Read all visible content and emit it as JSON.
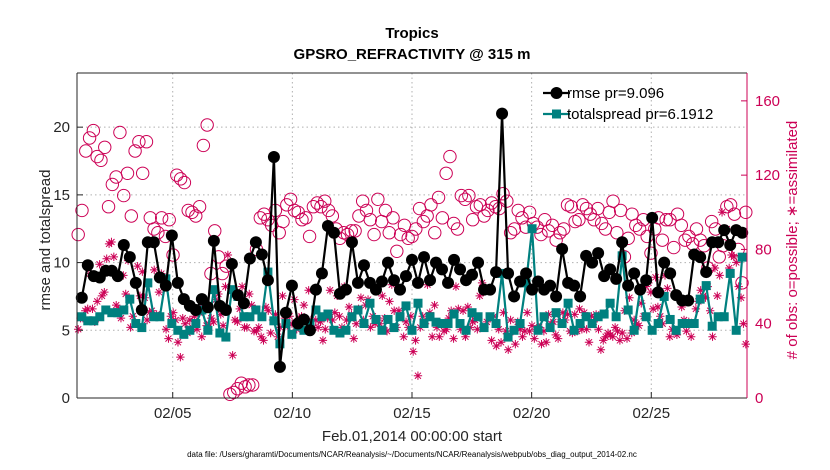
{
  "chart_data": {
    "type": "line",
    "title": "Tropics",
    "subtitle": "GPSRO_REFRACTIVITY @ 315 m",
    "xlabel": "Feb.01,2014 00:00:00 start",
    "ylabel": "rmse and totalspread",
    "ylabel_right": "# of obs: o=possible; ∗=assimilated",
    "footnote": "data file: /Users/gharamti/Documents/NCAR/Reanalysis/~/Documents/NCAR/Reanalysis/webpub/obs_diag_output_2014-02.nc",
    "x_range": [
      1.0,
      29.0
    ],
    "ylim": [
      0,
      24
    ],
    "ylim_right": [
      0,
      175
    ],
    "x_ticks": [
      5,
      10,
      15,
      20,
      25
    ],
    "x_tick_labels": [
      "02/05",
      "02/10",
      "02/15",
      "02/20",
      "02/25"
    ],
    "y_ticks": [
      0,
      5,
      10,
      15,
      20
    ],
    "y_tick_labels": [
      "0",
      "5",
      "10",
      "15",
      "20"
    ],
    "y_right_ticks": [
      0,
      40,
      80,
      120,
      160
    ],
    "y_right_tick_labels": [
      "0",
      "40",
      "80",
      "120",
      "160"
    ],
    "legend_position": "top-right",
    "colors": {
      "rmse": "#000000",
      "spread": "#00807f",
      "obs": "#cc0055"
    },
    "series": [
      {
        "name": "rmse",
        "legend": "rmse pr=9.096",
        "marker": "filled-circle",
        "values": [
          7.4,
          9.8,
          9.0,
          8.9,
          9.4,
          9.4,
          9.0,
          11.3,
          10.4,
          8.5,
          6.5,
          11.5,
          11.5,
          8.9,
          8.3,
          12.0,
          8.5,
          7.3,
          6.8,
          6.5,
          7.3,
          6.7,
          11.6,
          6.8,
          6.5,
          9.9,
          7.6,
          7.0,
          10.3,
          11.5,
          10.6,
          8.7,
          17.8,
          2.3,
          6.3,
          8.3,
          5.5,
          5.8,
          5.0,
          8.0,
          9.2,
          12.7,
          12.2,
          7.7,
          8.0,
          11.5,
          8.5,
          9.8,
          8.5,
          8.0,
          8.6,
          10.0,
          8.7,
          8.0,
          9.0,
          10.2,
          8.5,
          10.4,
          8.7,
          10.0,
          9.5,
          8.5,
          10.2,
          9.5,
          8.7,
          9.1,
          10.0,
          8.0,
          8.0,
          9.3,
          21.0,
          9.2,
          7.5,
          8.6,
          9.2,
          8.0,
          8.6,
          8.0,
          8.3,
          7.5,
          11.0,
          8.5,
          8.3,
          7.5,
          10.5,
          10.0,
          10.7,
          9.0,
          9.5,
          8.8,
          11.5,
          8.3,
          9.2,
          8.0,
          8.7,
          13.3,
          7.8,
          10.0,
          9.2,
          7.6,
          7.2,
          7.2,
          10.6,
          10.4,
          9.3,
          11.5,
          11.5,
          12.4,
          11.3,
          12.4,
          12.2
        ]
      },
      {
        "name": "totalspread",
        "legend": "totalspread pr=6.1912",
        "marker": "filled-square",
        "values": [
          6.0,
          5.7,
          5.7,
          6.0,
          6.5,
          6.3,
          6.3,
          6.5,
          7.3,
          5.5,
          5.2,
          8.5,
          6.0,
          6.0,
          8.8,
          5.5,
          5.0,
          4.7,
          5.0,
          5.5,
          6.5,
          5.0,
          8.0,
          4.8,
          4.5,
          8.0,
          7.5,
          6.0,
          6.0,
          6.5,
          6.0,
          9.3,
          5.7,
          4.0,
          5.5,
          4.7,
          5.3,
          5.0,
          5.5,
          6.5,
          6.0,
          6.2,
          5.0,
          4.8,
          5.0,
          6.0,
          6.5,
          5.5,
          7.0,
          5.8,
          5.0,
          5.8,
          5.2,
          6.0,
          6.8,
          5.0,
          7.0,
          5.5,
          6.0,
          5.6,
          5.5,
          5.5,
          6.2,
          5.5,
          5.0,
          6.3,
          6.0,
          5.2,
          6.0,
          5.5,
          9.2,
          4.5,
          5.0,
          5.5,
          8.5,
          12.5,
          5.0,
          6.0,
          5.2,
          6.3,
          5.5,
          7.0,
          5.0,
          5.5,
          6.0,
          5.5,
          6.0,
          6.2,
          7.0,
          6.0,
          10.5,
          6.5,
          5.0,
          8.0,
          6.0,
          5.0,
          5.5,
          7.5,
          5.8,
          5.0,
          5.5,
          5.5,
          5.5,
          7.3,
          8.3,
          5.3,
          6.0,
          6.0,
          9.2,
          5.0,
          10.4
        ]
      },
      {
        "name": "possible obs",
        "axis": "right",
        "marker": "open-circle",
        "values": [
          88,
          101,
          133,
          140,
          144,
          130,
          128,
          135,
          103,
          115,
          119,
          143,
          109,
          121,
          98,
          133,
          138,
          121,
          138,
          97,
          91,
          89,
          97,
          87,
          96,
          77,
          120,
          118,
          116,
          101,
          100,
          98,
          103,
          136,
          147,
          67,
          90,
          76,
          67,
          71,
          2,
          3,
          5,
          8,
          6,
          7,
          7,
          80,
          97,
          99,
          96,
          93,
          101,
          89,
          95,
          104,
          107,
          101,
          100,
          96,
          97,
          87,
          103,
          105,
          103,
          106,
          101,
          98,
          91,
          86,
          89,
          88,
          90,
          90,
          98,
          106,
          101,
          96,
          88,
          107,
          95,
          101,
          89,
          97,
          79,
          88,
          93,
          86,
          87,
          91,
          102,
          95,
          98,
          104,
          89,
          108,
          97,
          121,
          130,
          94,
          91,
          109,
          107,
          109,
          96,
          103,
          104,
          98,
          101,
          105,
          103,
          102,
          110,
          106,
          89,
          91,
          101,
          97,
          92,
          100,
          94,
          92,
          88,
          96,
          90,
          93,
          85,
          89,
          91,
          104,
          103,
          95,
          96,
          104,
          102,
          99,
          96,
          102,
          94,
          91,
          100,
          106,
          89,
          101,
          76,
          86,
          99,
          93,
          91,
          96,
          87,
          78,
          91,
          97,
          85,
          96,
          96,
          81,
          99,
          93,
          85,
          87,
          83,
          91,
          85,
          82,
          70,
          95,
          91,
          76,
          82,
          103,
          104,
          99,
          80,
          62,
          100
        ]
      },
      {
        "name": "assimilated obs",
        "axis": "right",
        "marker": "asterisk",
        "values": [
          37,
          43,
          43,
          47,
          48,
          67,
          48,
          41,
          52,
          72,
          55,
          57,
          75,
          83,
          84,
          76,
          50,
          48,
          43,
          66,
          56,
          74,
          38,
          44,
          63,
          71,
          55,
          68,
          54,
          42,
          46,
          47,
          69,
          45,
          57,
          67,
          63,
          37,
          32,
          44,
          46,
          42,
          30,
          22,
          43,
          40,
          35,
          42,
          38,
          44,
          37,
          46,
          33,
          50,
          39,
          40,
          43,
          41,
          53,
          56,
          45,
          39,
          60,
          77,
          72,
          23,
          42,
          41,
          48,
          60,
          38,
          38,
          56,
          50,
          36,
          36,
          38,
          33,
          31,
          49,
          47,
          35,
          42,
          45,
          33,
          38,
          55,
          43,
          39,
          44,
          40,
          53,
          37,
          43,
          44,
          50,
          42,
          58,
          42,
          38,
          42,
          38,
          41,
          31,
          37,
          43,
          58,
          42,
          46,
          55,
          44,
          38,
          60,
          42,
          49,
          45,
          32,
          40,
          48,
          54,
          42,
          50,
          53,
          38,
          44,
          40,
          42,
          40,
          55,
          43,
          36,
          52,
          61,
          47,
          38,
          47,
          58,
          33,
          41,
          38,
          44,
          25,
          31,
          12,
          38,
          44,
          40,
          61,
          46,
          33,
          50,
          38,
          33,
          40,
          36,
          37,
          43,
          47,
          32,
          60,
          48,
          37,
          47,
          33,
          49,
          38,
          41,
          42,
          37,
          55,
          62,
          38,
          41,
          59,
          31,
          44,
          28,
          37,
          30,
          46,
          36,
          26,
          42,
          36,
          29,
          41,
          37,
          33,
          36,
          46,
          36,
          39,
          32,
          37,
          38,
          29,
          36,
          30,
          45,
          40,
          41,
          34,
          32,
          41,
          46,
          42,
          45,
          36,
          35,
          45,
          36,
          48,
          37,
          46,
          37,
          30,
          44,
          41,
          45,
          37,
          26,
          31,
          33,
          35,
          34,
          33,
          38,
          36,
          31,
          35,
          47,
          32,
          54,
          35,
          42,
          40,
          39,
          51,
          44,
          60,
          62,
          57,
          48,
          65,
          49,
          44,
          40,
          66,
          59,
          33,
          37,
          36,
          34,
          54,
          49,
          42,
          36,
          41,
          33,
          40,
          48,
          52,
          58,
          55,
          54,
          60,
          47,
          33,
          70,
          55,
          66,
          100,
          91,
          91,
          70,
          77,
          76,
          73,
          60,
          54,
          40,
          29
        ]
      }
    ]
  }
}
